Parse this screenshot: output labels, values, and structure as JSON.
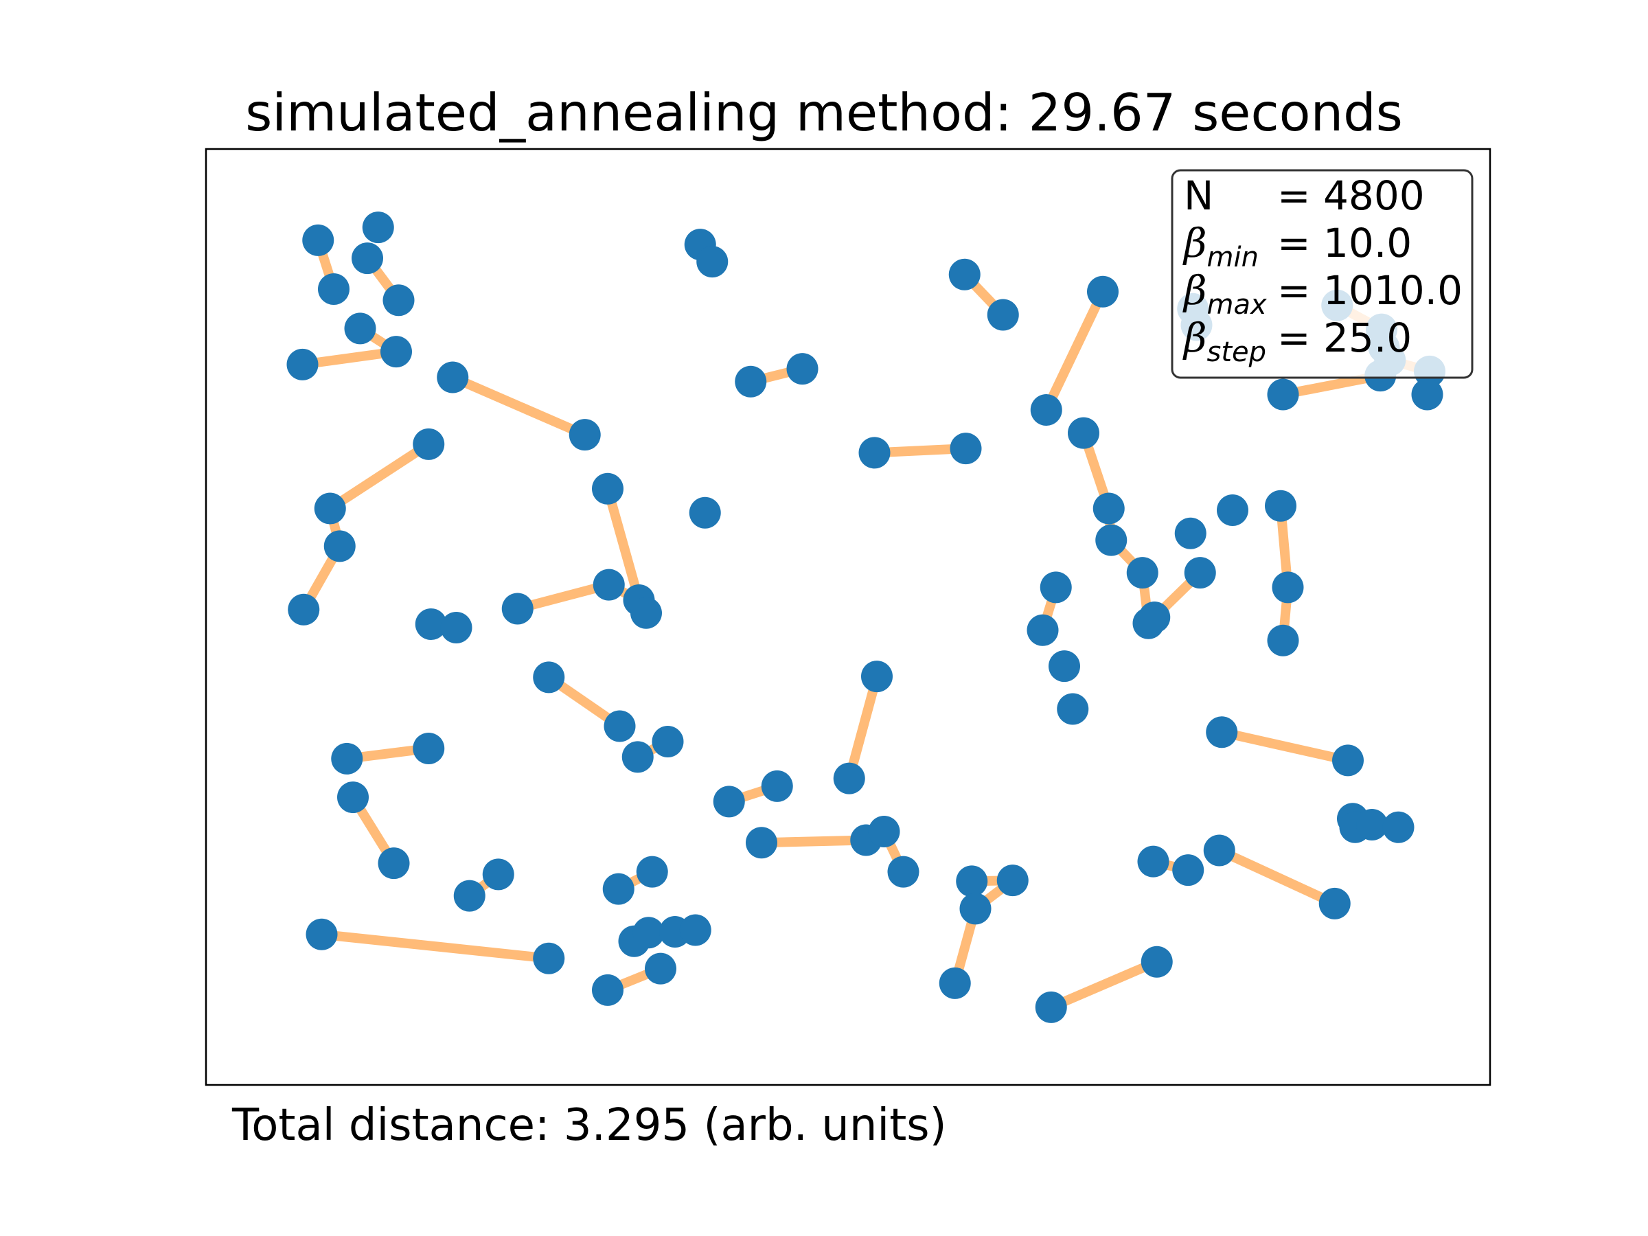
{
  "chart_data": {
    "type": "scatter",
    "title": "simulated_annealing method: 29.67 seconds",
    "footer": "Total distance: 3.295 (arb. units)",
    "xlim": [
      0,
      1
    ],
    "ylim": [
      0,
      1
    ],
    "grid": false,
    "axis_ticks": false,
    "point_color": "#1f77b4",
    "edge_color": "#ffbb78",
    "legend": {
      "placement": "top-right",
      "rows": [
        {
          "sym": "N",
          "sub": "",
          "eq": "= 4800"
        },
        {
          "sym": "β",
          "sub": "min",
          "eq": "= 10.0"
        },
        {
          "sym": "β",
          "sub": "max",
          "eq": "= 1010.0"
        },
        {
          "sym": "β",
          "sub": "step",
          "eq": "= 25.0"
        }
      ]
    },
    "points": [
      [
        0.059,
        0.94
      ],
      [
        0.072,
        0.883
      ],
      [
        0.109,
        0.955
      ],
      [
        0.1,
        0.919
      ],
      [
        0.126,
        0.87
      ],
      [
        0.094,
        0.837
      ],
      [
        0.124,
        0.81
      ],
      [
        0.046,
        0.795
      ],
      [
        0.171,
        0.78
      ],
      [
        0.281,
        0.713
      ],
      [
        0.151,
        0.702
      ],
      [
        0.069,
        0.627
      ],
      [
        0.077,
        0.583
      ],
      [
        0.047,
        0.509
      ],
      [
        0.3,
        0.65
      ],
      [
        0.377,
        0.935
      ],
      [
        0.387,
        0.915
      ],
      [
        0.419,
        0.775
      ],
      [
        0.462,
        0.79
      ],
      [
        0.381,
        0.622
      ],
      [
        0.225,
        0.51
      ],
      [
        0.301,
        0.538
      ],
      [
        0.326,
        0.52
      ],
      [
        0.332,
        0.505
      ],
      [
        0.153,
        0.492
      ],
      [
        0.174,
        0.488
      ],
      [
        0.251,
        0.43
      ],
      [
        0.31,
        0.373
      ],
      [
        0.325,
        0.337
      ],
      [
        0.35,
        0.355
      ],
      [
        0.083,
        0.335
      ],
      [
        0.151,
        0.347
      ],
      [
        0.088,
        0.29
      ],
      [
        0.122,
        0.213
      ],
      [
        0.185,
        0.175
      ],
      [
        0.209,
        0.2
      ],
      [
        0.062,
        0.13
      ],
      [
        0.251,
        0.102
      ],
      [
        0.309,
        0.183
      ],
      [
        0.337,
        0.203
      ],
      [
        0.322,
        0.122
      ],
      [
        0.334,
        0.132
      ],
      [
        0.356,
        0.133
      ],
      [
        0.373,
        0.135
      ],
      [
        0.3,
        0.065
      ],
      [
        0.344,
        0.09
      ],
      [
        0.401,
        0.285
      ],
      [
        0.441,
        0.303
      ],
      [
        0.428,
        0.237
      ],
      [
        0.515,
        0.24
      ],
      [
        0.53,
        0.25
      ],
      [
        0.546,
        0.203
      ],
      [
        0.501,
        0.312
      ],
      [
        0.524,
        0.431
      ],
      [
        0.597,
        0.9
      ],
      [
        0.629,
        0.853
      ],
      [
        0.522,
        0.692
      ],
      [
        0.598,
        0.697
      ],
      [
        0.662,
        0.485
      ],
      [
        0.673,
        0.535
      ],
      [
        0.603,
        0.192
      ],
      [
        0.637,
        0.193
      ],
      [
        0.606,
        0.16
      ],
      [
        0.589,
        0.073
      ],
      [
        0.669,
        0.045
      ],
      [
        0.757,
        0.098
      ],
      [
        0.712,
        0.88
      ],
      [
        0.665,
        0.742
      ],
      [
        0.696,
        0.715
      ],
      [
        0.717,
        0.627
      ],
      [
        0.719,
        0.59
      ],
      [
        0.745,
        0.552
      ],
      [
        0.75,
        0.493
      ],
      [
        0.793,
        0.552
      ],
      [
        0.68,
        0.443
      ],
      [
        0.687,
        0.393
      ],
      [
        0.785,
        0.598
      ],
      [
        0.82,
        0.625
      ],
      [
        0.86,
        0.63
      ],
      [
        0.866,
        0.535
      ],
      [
        0.862,
        0.473
      ],
      [
        0.754,
        0.215
      ],
      [
        0.783,
        0.205
      ],
      [
        0.809,
        0.228
      ],
      [
        0.905,
        0.166
      ],
      [
        0.811,
        0.366
      ],
      [
        0.916,
        0.333
      ],
      [
        0.92,
        0.265
      ],
      [
        0.922,
        0.255
      ],
      [
        0.936,
        0.258
      ],
      [
        0.958,
        0.255
      ],
      [
        0.755,
        0.5
      ],
      [
        0.862,
        0.76
      ],
      [
        0.943,
        0.782
      ],
      [
        0.951,
        0.8
      ],
      [
        0.984,
        0.787
      ],
      [
        0.982,
        0.76
      ],
      [
        0.787,
        0.86
      ],
      [
        0.79,
        0.841
      ],
      [
        0.907,
        0.864
      ],
      [
        0.944,
        0.836
      ],
      [
        0.946,
        0.815
      ]
    ],
    "edges": [
      [
        0,
        1
      ],
      [
        3,
        4
      ],
      [
        5,
        6
      ],
      [
        7,
        6
      ],
      [
        8,
        9
      ],
      [
        10,
        11
      ],
      [
        11,
        12
      ],
      [
        12,
        13
      ],
      [
        14,
        22
      ],
      [
        17,
        18
      ],
      [
        20,
        21
      ],
      [
        21,
        22
      ],
      [
        26,
        27
      ],
      [
        28,
        29
      ],
      [
        30,
        31
      ],
      [
        32,
        33
      ],
      [
        34,
        35
      ],
      [
        36,
        37
      ],
      [
        38,
        39
      ],
      [
        40,
        41
      ],
      [
        41,
        42
      ],
      [
        42,
        43
      ],
      [
        44,
        45
      ],
      [
        46,
        47
      ],
      [
        48,
        49
      ],
      [
        49,
        50
      ],
      [
        50,
        51
      ],
      [
        52,
        53
      ],
      [
        54,
        55
      ],
      [
        56,
        57
      ],
      [
        58,
        59
      ],
      [
        60,
        61
      ],
      [
        61,
        62
      ],
      [
        62,
        63
      ],
      [
        64,
        65
      ],
      [
        66,
        67
      ],
      [
        68,
        69
      ],
      [
        69,
        70
      ],
      [
        70,
        71
      ],
      [
        71,
        72
      ],
      [
        73,
        91
      ],
      [
        78,
        79
      ],
      [
        79,
        80
      ],
      [
        81,
        82
      ],
      [
        83,
        84
      ],
      [
        85,
        86
      ],
      [
        88,
        89
      ],
      [
        92,
        93
      ],
      [
        94,
        95
      ],
      [
        97,
        98
      ],
      [
        99,
        100
      ]
    ]
  }
}
